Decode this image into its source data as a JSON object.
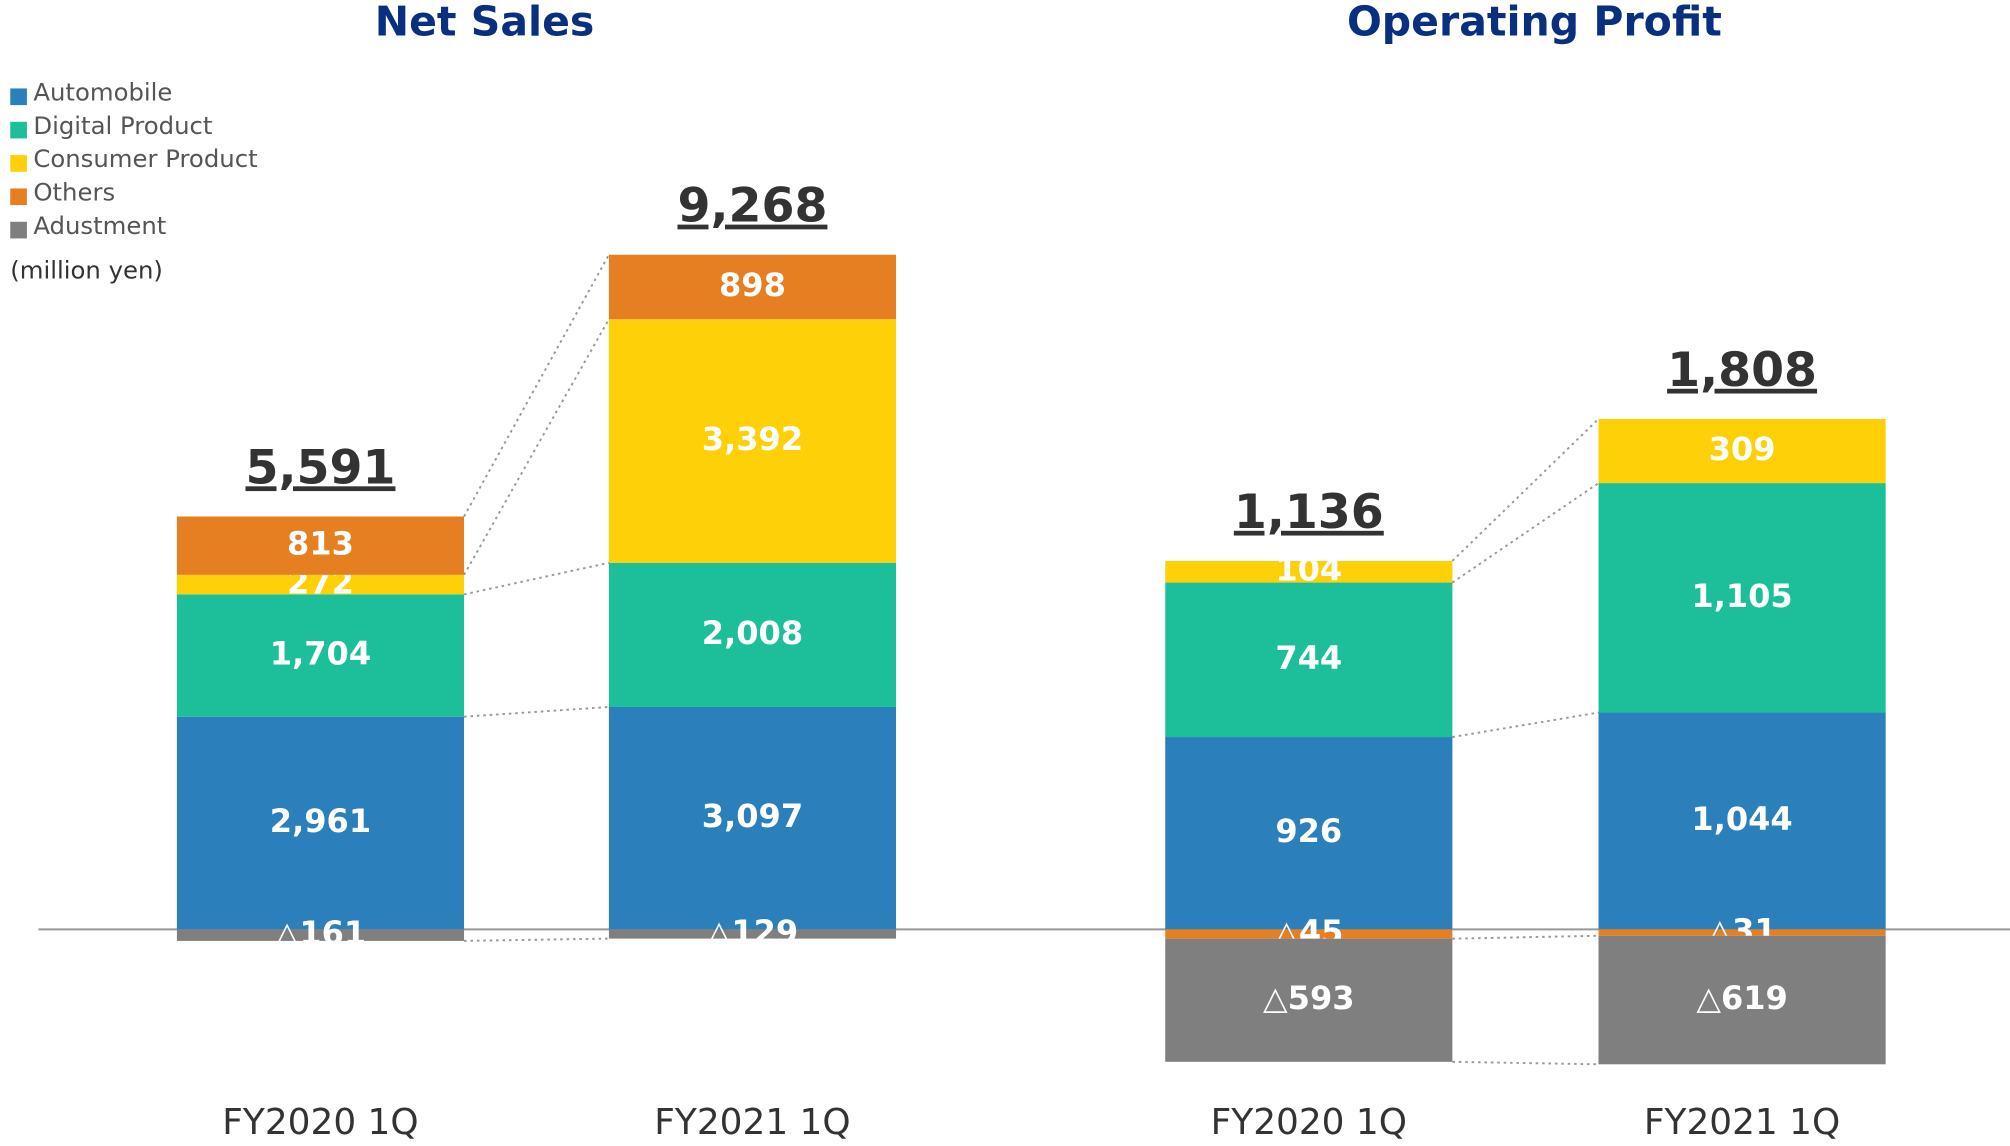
{
  "chart_data": [
    {
      "type": "stacked_bar",
      "title": "Net Sales",
      "unit_label": "(million yen)",
      "categories": [
        "FY2020 1Q",
        "FY2021 1Q"
      ],
      "series": [
        {
          "name": "Automobile",
          "color": "#2b7fba",
          "values": [
            2961,
            3097
          ],
          "value_labels": [
            "2,961",
            "3,097"
          ]
        },
        {
          "name": "Digital Product",
          "color": "#1dbf9b",
          "values": [
            1704,
            2008
          ],
          "value_labels": [
            "1,704",
            "2,008"
          ]
        },
        {
          "name": "Consumer Product",
          "color": "#fdd008",
          "values": [
            272,
            3392
          ],
          "value_labels": [
            "272",
            "3,392"
          ]
        },
        {
          "name": "Others",
          "color": "#e67e22",
          "values": [
            813,
            898
          ],
          "value_labels": [
            "813",
            "898"
          ]
        },
        {
          "name": "Adustment",
          "color": "#7f7f7f",
          "values": [
            -161,
            -129
          ],
          "value_labels": [
            "△161",
            "△129"
          ]
        }
      ],
      "totals": [
        5591,
        9268
      ],
      "total_labels": [
        "5,591",
        "9,268"
      ],
      "ylim": [
        -2250,
        11140
      ]
    },
    {
      "type": "stacked_bar",
      "title": "Operating Profit",
      "categories": [
        "FY2020 1Q",
        "FY2021 1Q"
      ],
      "series": [
        {
          "name": "Automobile",
          "color": "#2b7fba",
          "values": [
            926,
            1044
          ],
          "value_labels": [
            "926",
            "1,044"
          ]
        },
        {
          "name": "Digital Product",
          "color": "#1dbf9b",
          "values": [
            744,
            1105
          ],
          "value_labels": [
            "744",
            "1,105"
          ]
        },
        {
          "name": "Consumer Product",
          "color": "#fdd008",
          "values": [
            104,
            309
          ],
          "value_labels": [
            "104",
            "309"
          ]
        },
        {
          "name": "Others",
          "color": "#e67e22",
          "values": [
            -45,
            -31
          ],
          "value_labels": [
            "△45",
            "△31"
          ]
        },
        {
          "name": "Adustment",
          "color": "#7f7f7f",
          "values": [
            -593,
            -619
          ],
          "value_labels": [
            "△593",
            "△619"
          ]
        }
      ],
      "totals": [
        1136,
        1808
      ],
      "total_labels": [
        "1,136",
        "1,808"
      ],
      "ylim": [
        -778,
        3852
      ]
    }
  ]
}
